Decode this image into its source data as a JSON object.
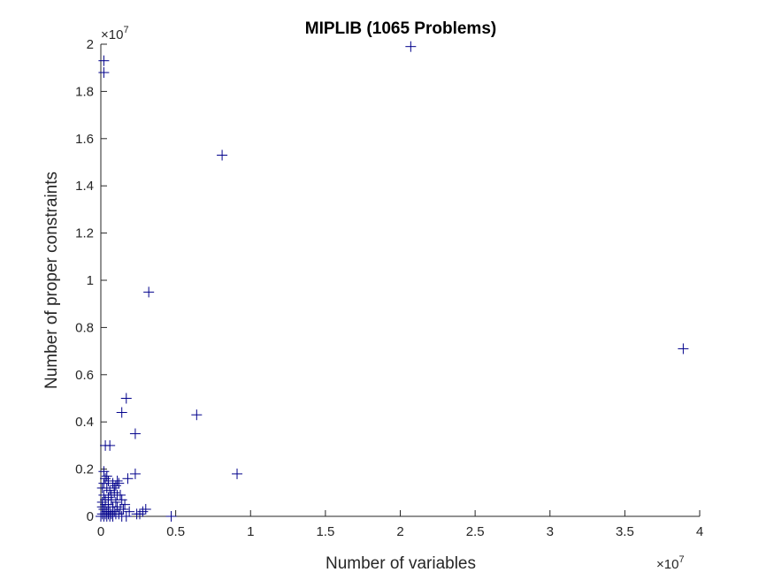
{
  "chart_data": {
    "type": "scatter",
    "title": "MIPLIB (1065 Problems)",
    "xlabel": "Number of variables",
    "ylabel": "Number of proper constraints",
    "x_multiplier": "×10",
    "x_multiplier_exponent": "7",
    "y_multiplier": "×10",
    "y_multiplier_exponent": "7",
    "xlim": [
      0,
      4
    ],
    "ylim": [
      0,
      2
    ],
    "xticks": [
      0,
      0.5,
      1,
      1.5,
      2,
      2.5,
      3,
      3.5,
      4
    ],
    "xtick_labels": [
      "0",
      "0.5",
      "1",
      "1.5",
      "2",
      "2.5",
      "3",
      "3.5",
      "4"
    ],
    "yticks": [
      0,
      0.2,
      0.4,
      0.6,
      0.8,
      1,
      1.2,
      1.4,
      1.6,
      1.8,
      2
    ],
    "ytick_labels": [
      "0",
      "0.2",
      "0.4",
      "0.6",
      "0.8",
      "1",
      "1.2",
      "1.4",
      "1.6",
      "1.8",
      "2"
    ],
    "grid": false,
    "legend": "none",
    "marker": "+",
    "marker_color": "#00008b",
    "points": [
      [
        0.02,
        1.93
      ],
      [
        0.02,
        1.88
      ],
      [
        2.07,
        1.99
      ],
      [
        0.81,
        1.53
      ],
      [
        0.32,
        0.95
      ],
      [
        3.89,
        0.71
      ],
      [
        0.17,
        0.5
      ],
      [
        0.14,
        0.44
      ],
      [
        0.64,
        0.43
      ],
      [
        0.23,
        0.35
      ],
      [
        0.03,
        0.3
      ],
      [
        0.06,
        0.3
      ],
      [
        0.91,
        0.18
      ],
      [
        0.23,
        0.18
      ],
      [
        0.18,
        0.16
      ],
      [
        0.02,
        0.19
      ],
      [
        0.03,
        0.16
      ],
      [
        0.05,
        0.15
      ],
      [
        0.08,
        0.14
      ],
      [
        0.1,
        0.13
      ],
      [
        0.12,
        0.14
      ],
      [
        0.01,
        0.12
      ],
      [
        0.04,
        0.12
      ],
      [
        0.06,
        0.11
      ],
      [
        0.09,
        0.1
      ],
      [
        0.11,
        0.09
      ],
      [
        0.13,
        0.09
      ],
      [
        0.02,
        0.09
      ],
      [
        0.05,
        0.08
      ],
      [
        0.07,
        0.07
      ],
      [
        0.1,
        0.06
      ],
      [
        0.14,
        0.07
      ],
      [
        0.16,
        0.05
      ],
      [
        0.01,
        0.06
      ],
      [
        0.03,
        0.05
      ],
      [
        0.05,
        0.05
      ],
      [
        0.08,
        0.04
      ],
      [
        0.11,
        0.04
      ],
      [
        0.13,
        0.03
      ],
      [
        0.15,
        0.03
      ],
      [
        0.19,
        0.02
      ],
      [
        0.02,
        0.03
      ],
      [
        0.04,
        0.02
      ],
      [
        0.06,
        0.02
      ],
      [
        0.09,
        0.02
      ],
      [
        0.12,
        0.01
      ],
      [
        0.01,
        0.01
      ],
      [
        0.03,
        0.01
      ],
      [
        0.05,
        0.01
      ],
      [
        0.07,
        0.01
      ],
      [
        0.1,
        0.01
      ],
      [
        0.0,
        0.0
      ],
      [
        0.02,
        0.0
      ],
      [
        0.04,
        0.0
      ],
      [
        0.06,
        0.0
      ],
      [
        0.08,
        0.0
      ],
      [
        0.14,
        0.0
      ],
      [
        0.17,
        0.0
      ],
      [
        0.24,
        0.01
      ],
      [
        0.28,
        0.02
      ],
      [
        0.3,
        0.03
      ],
      [
        0.26,
        0.01
      ],
      [
        0.47,
        0.0
      ],
      [
        0.01,
        0.04
      ],
      [
        0.03,
        0.07
      ],
      [
        0.07,
        0.09
      ],
      [
        0.09,
        0.12
      ],
      [
        0.11,
        0.15
      ],
      [
        0.02,
        0.14
      ],
      [
        0.04,
        0.17
      ]
    ]
  }
}
